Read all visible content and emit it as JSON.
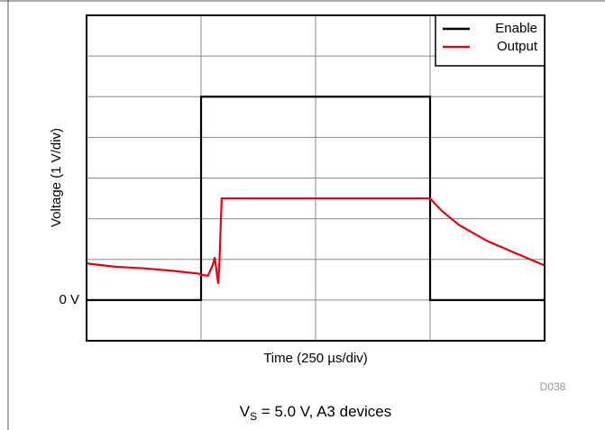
{
  "chart_data": {
    "type": "line",
    "xlabel": "Time (250 µs/div)",
    "ylabel": "Voltage (1 V/div)",
    "xlim": [
      0,
      4
    ],
    "ylim": [
      -1,
      7
    ],
    "xgrid": [
      0,
      1,
      2,
      3,
      4
    ],
    "ygrid": [
      -1,
      0,
      1,
      2,
      3,
      4,
      5,
      6,
      7
    ],
    "yticks": [
      {
        "value": 0,
        "label": "0 V"
      }
    ],
    "legend": "upper right",
    "series": [
      {
        "name": "Enable",
        "color": "#000000",
        "x": [
          0,
          1,
          1,
          3,
          3,
          4
        ],
        "values": [
          0,
          0,
          5,
          5,
          0,
          0
        ]
      },
      {
        "name": "Output",
        "color": "#e8000b",
        "x": [
          0,
          0.25,
          0.5,
          0.75,
          0.98,
          1.0,
          1.06,
          1.1,
          1.12,
          1.14,
          1.15,
          1.16,
          1.18,
          3.0,
          3.1,
          3.25,
          3.5,
          3.75,
          4.0
        ],
        "values": [
          0.9,
          0.82,
          0.78,
          0.72,
          0.65,
          0.62,
          0.6,
          0.85,
          1.05,
          0.6,
          0.4,
          0.9,
          2.5,
          2.5,
          2.2,
          1.85,
          1.45,
          1.15,
          0.85
        ]
      }
    ],
    "figure_id": "D038",
    "caption": {
      "main": "V",
      "subscript": "S",
      "rest": " = 5.0 V, A3 devices"
    }
  }
}
